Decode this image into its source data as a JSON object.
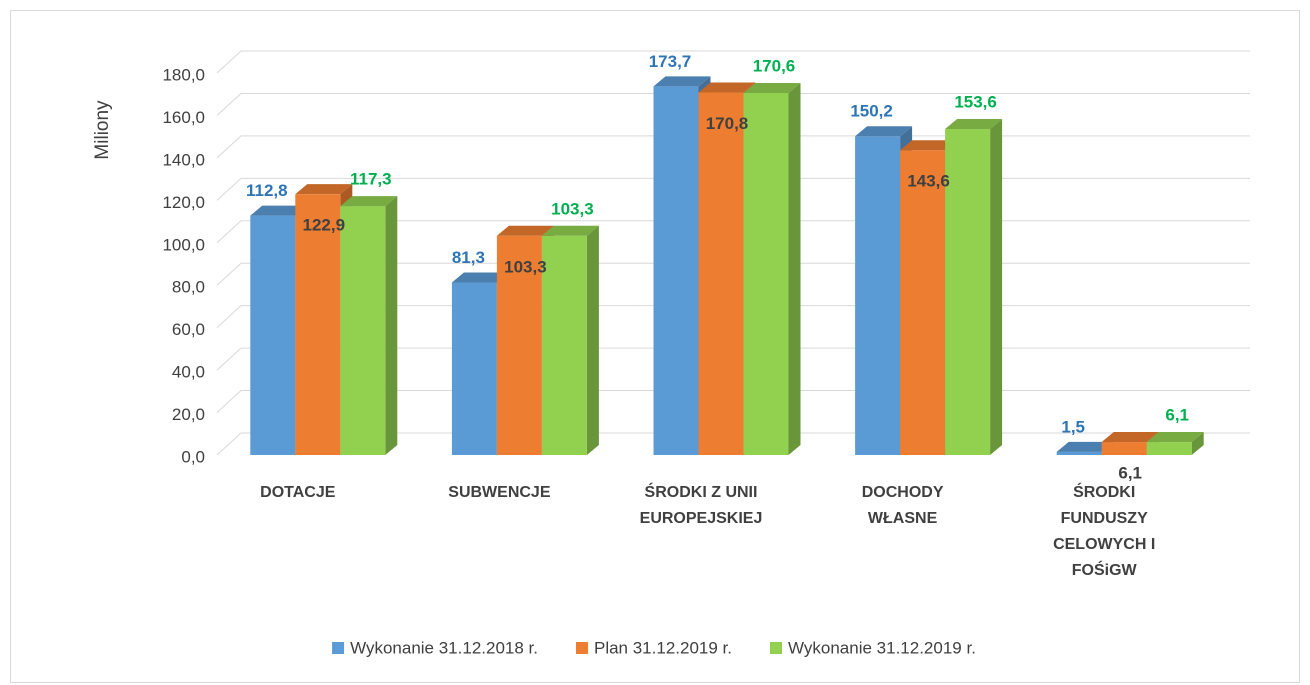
{
  "chart_data": {
    "type": "bar3d",
    "y_axis_label": "Miliony",
    "categories": [
      "DOTACJE",
      "SUBWENCJE",
      "ŚRODKI Z UNII EUROPEJSKIEJ",
      "DOCHODY WŁASNE",
      "ŚRODKI FUNDUSZY CELOWYCH I FOŚiGW"
    ],
    "series": [
      {
        "name": "Wykonanie 31.12.2018 r.",
        "color": "#5b9bd5",
        "label_color": "#2e75b6",
        "values": [
          112.8,
          81.3,
          173.7,
          150.2,
          1.5
        ],
        "value_labels": [
          "112,8",
          "81,3",
          "173,7",
          "150,2",
          "1,5"
        ]
      },
      {
        "name": "Plan 31.12.2019 r.",
        "color": "#ed7d31",
        "label_color": "#404040",
        "values": [
          122.9,
          103.3,
          170.8,
          143.6,
          6.1
        ],
        "value_labels": [
          "122,9",
          "103,3",
          "170,8",
          "143,6",
          "6,1"
        ]
      },
      {
        "name": "Wykonanie 31.12.2019 r.",
        "color": "#92d050",
        "label_color": "#00b050",
        "values": [
          117.3,
          103.3,
          170.6,
          153.6,
          6.1
        ],
        "value_labels": [
          "117,3",
          "103,3",
          "170,6",
          "153,6",
          "6,1"
        ]
      }
    ],
    "ylim": [
      0,
      180
    ],
    "yticks": [
      {
        "value": 0,
        "label": "0,0"
      },
      {
        "value": 20,
        "label": "20,0"
      },
      {
        "value": 40,
        "label": "40,0"
      },
      {
        "value": 60,
        "label": "60,0"
      },
      {
        "value": 80,
        "label": "80,0"
      },
      {
        "value": 100,
        "label": "100,0"
      },
      {
        "value": 120,
        "label": "120,0"
      },
      {
        "value": 140,
        "label": "140,0"
      },
      {
        "value": 160,
        "label": "160,0"
      },
      {
        "value": 180,
        "label": "180,0"
      }
    ],
    "grid": true,
    "legend": "bottom"
  }
}
